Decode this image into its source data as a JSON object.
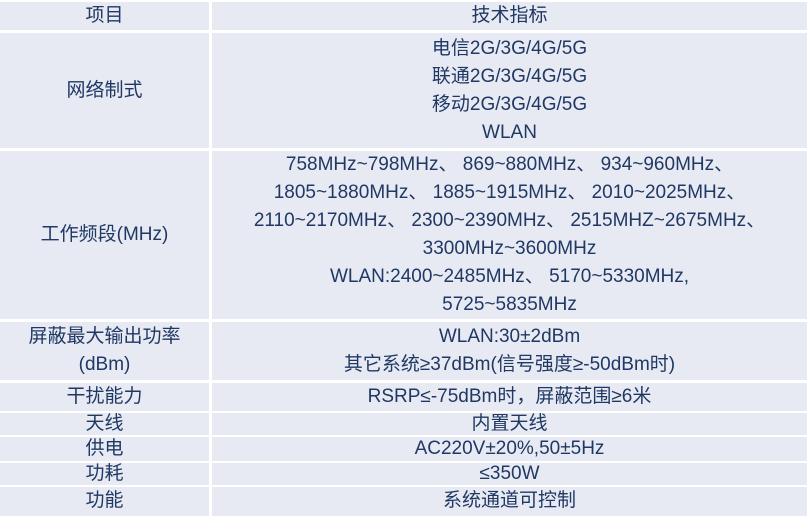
{
  "table": {
    "text_color": "#1f3864",
    "row_bg": "#e8eaf3",
    "divider_color": "#ffffff",
    "header": {
      "item": "项目",
      "spec": "技术指标"
    },
    "rows": [
      {
        "item_lines": [
          "网络制式"
        ],
        "spec_lines": [
          "电信2G/3G/4G/5G",
          "联通2G/3G/4G/5G",
          "移动2G/3G/4G/5G",
          "WLAN"
        ]
      },
      {
        "item_lines": [
          "工作频段(MHz)"
        ],
        "spec_lines": [
          "758MHz~798MHz、 869~880MHz、 934~960MHz、",
          "1805~1880MHz、 1885~1915MHz、 2010~2025MHz、",
          "2110~2170MHz、 2300~2390MHz、 2515MHZ~2675MHz、",
          "3300MHz~3600MHz",
          "WLAN:2400~2485MHz、 5170~5330MHz,",
          "5725~5835MHz"
        ]
      },
      {
        "item_lines": [
          "屏蔽最大输出功率",
          "(dBm)"
        ],
        "spec_lines": [
          "WLAN:30±2dBm",
          "其它系统≥37dBm(信号强度≥-50dBm时)"
        ]
      },
      {
        "item_lines": [
          "干扰能力"
        ],
        "spec_lines": [
          "RSRP≤-75dBm时，屏蔽范围≥6米"
        ]
      },
      {
        "item_lines": [
          "天线"
        ],
        "spec_lines": [
          "内置天线"
        ]
      },
      {
        "item_lines": [
          "供电"
        ],
        "spec_lines": [
          "AC220V±20%,50±5Hz"
        ]
      },
      {
        "item_lines": [
          "功耗"
        ],
        "spec_lines": [
          "≤350W"
        ]
      },
      {
        "item_lines": [
          "功能"
        ],
        "spec_lines": [
          "系统通道可控制"
        ]
      }
    ]
  }
}
